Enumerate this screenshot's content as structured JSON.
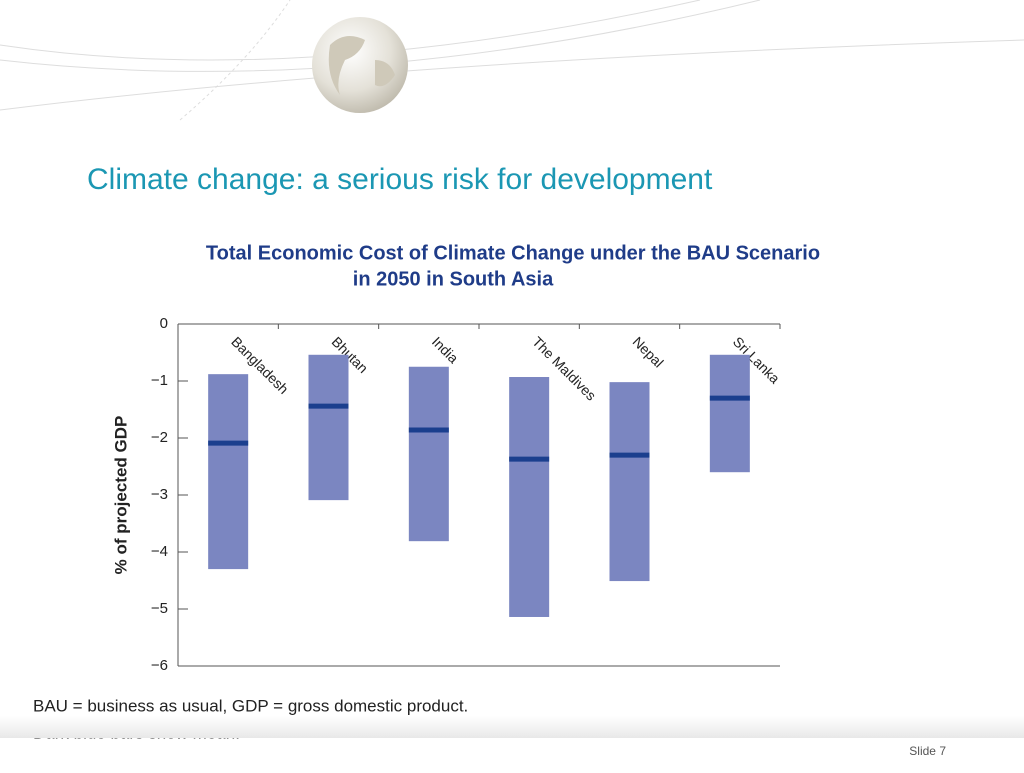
{
  "slide": {
    "title": "Climate change: a serious risk for development",
    "footer": "Slide 7"
  },
  "chart_data": {
    "type": "floating-bar",
    "title": [
      "Total Economic Cost of Climate Change under the BAU Scenario",
      "in 2050 in South Asia"
    ],
    "y_label": "% of projected GDP",
    "categories": [
      "Bangladesh",
      "Bhutan",
      "India",
      "The Maldives",
      "Nepal",
      "Sri Lanka"
    ],
    "high": [
      -0.88,
      -0.54,
      -0.75,
      -0.93,
      -1.02,
      -0.54
    ],
    "low": [
      -4.3,
      -3.09,
      -3.81,
      -5.14,
      -4.51,
      -2.6
    ],
    "mean": [
      -2.09,
      -1.44,
      -1.86,
      -2.37,
      -2.3,
      -1.3
    ],
    "color": "#7b86c1",
    "mean_color": "#1b3f8e",
    "ylim": [
      -6,
      0
    ],
    "yticks": [
      0,
      {
        "value": -1,
        "label": "−1"
      },
      {
        "value": -2,
        "label": "−2"
      },
      {
        "value": -3,
        "label": "−3"
      },
      {
        "value": -4,
        "label": "−4"
      },
      {
        "value": -5,
        "label": "−5"
      },
      {
        "value": -6,
        "label": "−6"
      }
    ],
    "notes": [
      "BAU = business as usual, GDP = gross domestic product.",
      "Dark blue bars show mean."
    ]
  }
}
